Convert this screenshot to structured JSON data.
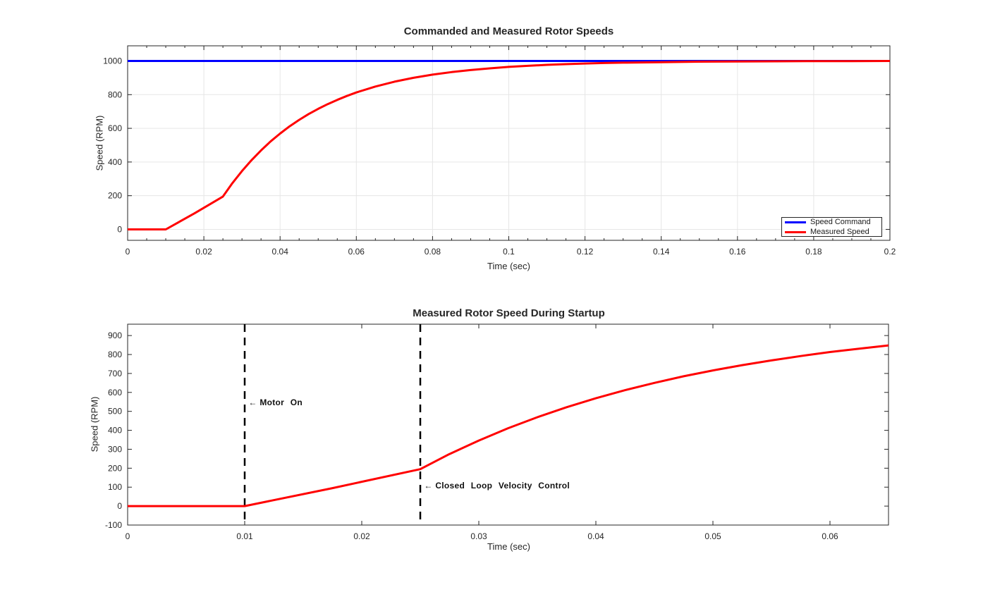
{
  "figure": {
    "background": "#ffffff",
    "axis_color": "#262626",
    "grid_color": "#e6e6e6"
  },
  "chart_data": [
    {
      "type": "line",
      "title": "Commanded and Measured Rotor Speeds",
      "xlabel": "Time (sec)",
      "ylabel": "Speed (RPM)",
      "xlim": [
        0,
        0.2
      ],
      "ylim": [
        -65,
        1090
      ],
      "grid": true,
      "xticks": {
        "values": [
          0,
          0.02,
          0.04,
          0.06,
          0.08,
          0.1,
          0.12,
          0.14,
          0.16,
          0.18,
          0.2
        ],
        "labels": [
          "0",
          "0.02",
          "0.04",
          "0.06",
          "0.08",
          "0.1",
          "0.12",
          "0.14",
          "0.16",
          "0.18",
          "0.2"
        ],
        "minor_step": 0.005
      },
      "yticks": {
        "values": [
          0,
          200,
          400,
          600,
          800,
          1000
        ],
        "labels": [
          "0",
          "200",
          "400",
          "600",
          "800",
          "1000"
        ]
      },
      "series": [
        {
          "name": "Speed Command",
          "color": "#0000ff",
          "x": [
            0,
            0.2
          ],
          "y": [
            1000,
            1000
          ]
        },
        {
          "name": "Measured Speed",
          "color": "#ff0000",
          "x": [
            0,
            0.01,
            0.0175,
            0.025,
            0.0275,
            0.03,
            0.0325,
            0.035,
            0.0375,
            0.04,
            0.0425,
            0.045,
            0.0475,
            0.05,
            0.0525,
            0.055,
            0.0575,
            0.06,
            0.065,
            0.07,
            0.075,
            0.08,
            0.085,
            0.09,
            0.095,
            0.1,
            0.105,
            0.11,
            0.115,
            0.12,
            0.125,
            0.13,
            0.14,
            0.15,
            0.16,
            0.17,
            0.18,
            0.19,
            0.2
          ],
          "y": [
            0,
            0,
            95,
            195,
            275,
            346,
            411,
            469,
            522,
            569,
            612,
            650,
            685,
            716,
            744,
            769,
            792,
            813,
            848,
            877,
            900,
            919,
            934,
            946,
            956,
            965,
            971,
            977,
            981,
            985,
            988,
            990,
            993,
            996,
            997,
            998,
            999,
            999,
            1000
          ]
        }
      ],
      "legend": {
        "position": "southeast",
        "entries": [
          {
            "label": "Speed Command",
            "color": "#0000ff"
          },
          {
            "label": "Measured Speed",
            "color": "#ff0000"
          }
        ]
      }
    },
    {
      "type": "line",
      "title": "Measured Rotor Speed During Startup",
      "xlabel": "Time (sec)",
      "ylabel": "Speed (RPM)",
      "xlim": [
        0,
        0.065
      ],
      "ylim": [
        -100,
        960
      ],
      "grid": false,
      "xticks": {
        "values": [
          0,
          0.01,
          0.02,
          0.03,
          0.04,
          0.05,
          0.06
        ],
        "labels": [
          "0",
          "0.01",
          "0.02",
          "0.03",
          "0.04",
          "0.05",
          "0.06"
        ]
      },
      "yticks": {
        "values": [
          -100,
          0,
          100,
          200,
          300,
          400,
          500,
          600,
          700,
          800,
          900
        ],
        "labels": [
          "-100",
          "0",
          "100",
          "200",
          "300",
          "400",
          "500",
          "600",
          "700",
          "800",
          "900"
        ]
      },
      "series": [
        {
          "name": "Measured Speed",
          "color": "#ff0000",
          "x": [
            0,
            0.01,
            0.0175,
            0.025,
            0.0275,
            0.03,
            0.0325,
            0.035,
            0.0375,
            0.04,
            0.0425,
            0.045,
            0.0475,
            0.05,
            0.0525,
            0.055,
            0.0575,
            0.06,
            0.0625,
            0.065
          ],
          "y": [
            0,
            0,
            95,
            195,
            275,
            346,
            411,
            469,
            522,
            569,
            612,
            650,
            685,
            716,
            744,
            769,
            792,
            813,
            831,
            848
          ]
        }
      ],
      "vlines": [
        {
          "x": 0.01,
          "style": "dashed",
          "color": "#000000"
        },
        {
          "x": 0.025,
          "style": "dashed",
          "color": "#000000"
        }
      ],
      "annotations": [
        {
          "arrow": "←",
          "label": "Motor On",
          "x": 0.0102,
          "y": 548
        },
        {
          "arrow": "←",
          "label": "Closed Loop Velocity Control",
          "x": 0.0252,
          "y": 108
        }
      ]
    }
  ]
}
